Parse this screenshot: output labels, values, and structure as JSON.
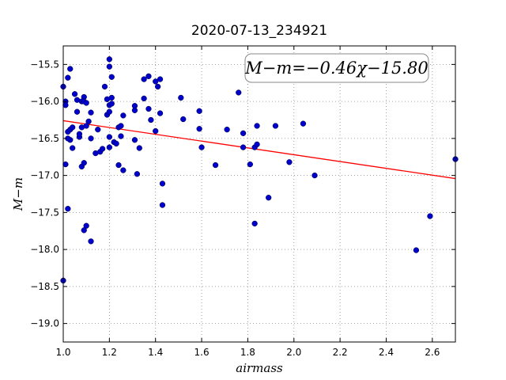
{
  "chart_data": {
    "type": "scatter",
    "title": "2020-07-13_234921",
    "xlabel": "airmass",
    "ylabel": "M−m",
    "annotation": "M−m=−0.46χ−15.80",
    "xlim": [
      1.0,
      2.7
    ],
    "ylim": [
      -19.25,
      -15.25
    ],
    "y_inverted": true,
    "xticks": [
      1.0,
      1.2,
      1.4,
      1.6,
      1.8,
      2.0,
      2.2,
      2.4,
      2.6
    ],
    "xtick_labels": [
      "1.0",
      "1.2",
      "1.4",
      "1.6",
      "1.8",
      "2.0",
      "2.2",
      "2.4",
      "2.6"
    ],
    "yticks": [
      -15.5,
      -16.0,
      -16.5,
      -17.0,
      -17.5,
      -18.0,
      -18.5,
      -19.0
    ],
    "ytick_labels": [
      "−15.5",
      "−16.0",
      "−16.5",
      "−17.0",
      "−17.5",
      "−18.0",
      "−18.5",
      "−19.0"
    ],
    "grid": true,
    "colors": {
      "points": "#0000cc",
      "fit_line": "#ff0000"
    },
    "fit": {
      "slope": -0.46,
      "intercept": -15.8
    },
    "points": [
      [
        1.0,
        -15.8
      ],
      [
        1.01,
        -16.0
      ],
      [
        1.01,
        -16.05
      ],
      [
        1.02,
        -15.68
      ],
      [
        1.03,
        -15.56
      ],
      [
        1.02,
        -16.41
      ],
      [
        1.03,
        -16.38
      ],
      [
        1.03,
        -16.52
      ],
      [
        1.02,
        -16.5
      ],
      [
        1.04,
        -16.63
      ],
      [
        1.04,
        -16.35
      ],
      [
        1.05,
        -15.9
      ],
      [
        1.06,
        -15.98
      ],
      [
        1.06,
        -16.14
      ],
      [
        1.07,
        -16.48
      ],
      [
        1.07,
        -16.44
      ],
      [
        1.08,
        -16.35
      ],
      [
        1.08,
        -16.0
      ],
      [
        1.09,
        -15.94
      ],
      [
        1.09,
        -16.0
      ],
      [
        1.1,
        -16.33
      ],
      [
        1.1,
        -16.02
      ],
      [
        1.11,
        -16.27
      ],
      [
        1.12,
        -16.15
      ],
      [
        1.12,
        -16.5
      ],
      [
        1.01,
        -16.85
      ],
      [
        1.08,
        -16.88
      ],
      [
        1.09,
        -16.83
      ],
      [
        1.1,
        -17.68
      ],
      [
        1.09,
        -17.74
      ],
      [
        1.12,
        -17.89
      ],
      [
        1.02,
        -17.45
      ],
      [
        1.0,
        -18.42
      ],
      [
        1.14,
        -16.7
      ],
      [
        1.15,
        -16.38
      ],
      [
        1.16,
        -16.68
      ],
      [
        1.17,
        -16.64
      ],
      [
        1.18,
        -15.8
      ],
      [
        1.19,
        -15.97
      ],
      [
        1.19,
        -16.18
      ],
      [
        1.2,
        -15.53
      ],
      [
        1.2,
        -15.43
      ],
      [
        1.2,
        -16.05
      ],
      [
        1.2,
        -16.14
      ],
      [
        1.21,
        -16.03
      ],
      [
        1.21,
        -15.95
      ],
      [
        1.21,
        -15.67
      ],
      [
        1.2,
        -16.48
      ],
      [
        1.2,
        -16.62
      ],
      [
        1.22,
        -16.55
      ],
      [
        1.23,
        -16.57
      ],
      [
        1.24,
        -16.35
      ],
      [
        1.25,
        -16.33
      ],
      [
        1.25,
        -16.47
      ],
      [
        1.26,
        -16.19
      ],
      [
        1.24,
        -16.86
      ],
      [
        1.26,
        -16.93
      ],
      [
        1.31,
        -16.06
      ],
      [
        1.31,
        -16.12
      ],
      [
        1.31,
        -16.52
      ],
      [
        1.33,
        -16.63
      ],
      [
        1.32,
        -16.98
      ],
      [
        1.35,
        -15.96
      ],
      [
        1.35,
        -15.7
      ],
      [
        1.37,
        -15.66
      ],
      [
        1.37,
        -16.1
      ],
      [
        1.38,
        -16.25
      ],
      [
        1.4,
        -15.73
      ],
      [
        1.4,
        -16.4
      ],
      [
        1.41,
        -15.8
      ],
      [
        1.42,
        -15.7
      ],
      [
        1.42,
        -16.16
      ],
      [
        1.43,
        -17.11
      ],
      [
        1.43,
        -17.4
      ],
      [
        1.51,
        -15.95
      ],
      [
        1.52,
        -16.24
      ],
      [
        1.59,
        -16.13
      ],
      [
        1.59,
        -16.37
      ],
      [
        1.6,
        -16.62
      ],
      [
        1.66,
        -16.86
      ],
      [
        1.71,
        -16.38
      ],
      [
        1.76,
        -15.88
      ],
      [
        1.78,
        -16.62
      ],
      [
        1.78,
        -16.43
      ],
      [
        1.81,
        -16.85
      ],
      [
        1.83,
        -16.62
      ],
      [
        1.84,
        -16.58
      ],
      [
        1.84,
        -16.33
      ],
      [
        1.83,
        -17.65
      ],
      [
        1.89,
        -17.3
      ],
      [
        1.92,
        -16.33
      ],
      [
        1.98,
        -16.82
      ],
      [
        2.04,
        -16.3
      ],
      [
        2.09,
        -17.0
      ],
      [
        2.53,
        -18.01
      ],
      [
        2.59,
        -17.55
      ],
      [
        2.7,
        -16.78
      ]
    ]
  }
}
